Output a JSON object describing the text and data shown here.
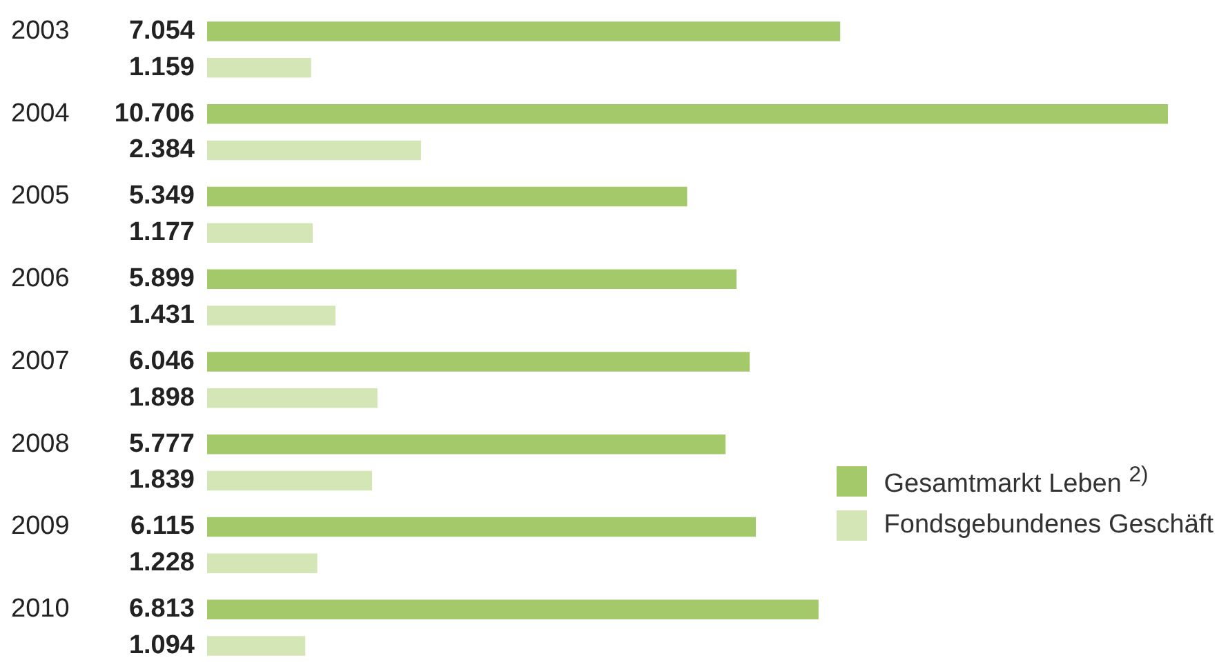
{
  "chart_data": {
    "type": "bar",
    "orientation": "horizontal",
    "categories": [
      "2003",
      "2004",
      "2005",
      "2006",
      "2007",
      "2008",
      "2009",
      "2010"
    ],
    "series": [
      {
        "name": "Gesamtmarkt Leben $^{2)}$",
        "color": "#a3c96b",
        "values": [
          7054,
          10706,
          5349,
          5899,
          6046,
          5777,
          6115,
          6813
        ],
        "value_labels": [
          "7.054",
          "10.706",
          "5.349",
          "5.899",
          "6.046",
          "5.777",
          "6.115",
          "6.813"
        ]
      },
      {
        "name": "Fondsgebundenes Geschäft",
        "color": "#d4e6b5",
        "values": [
          1159,
          2384,
          1177,
          1431,
          1898,
          1839,
          1228,
          1094
        ],
        "value_labels": [
          "1.159",
          "2.384",
          "1.177",
          "1.431",
          "1.898",
          "1.839",
          "1.228",
          "1.094"
        ]
      }
    ],
    "legend": "bottom right"
  }
}
